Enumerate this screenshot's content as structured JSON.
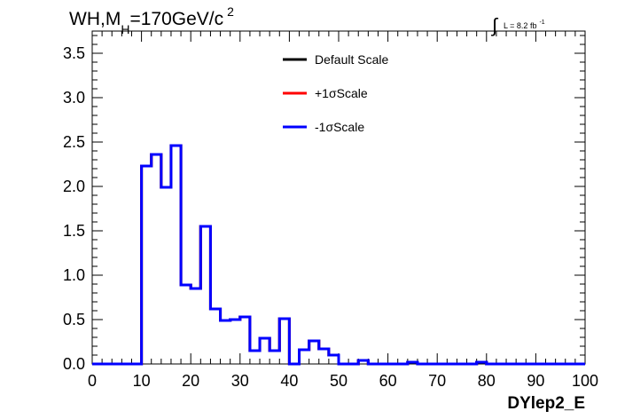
{
  "chart_data": {
    "type": "step",
    "title": {
      "main": "WH,M",
      "sub": "H",
      "rest": "=170GeV/c",
      "sup": "2"
    },
    "lumi": {
      "integral": "∫",
      "text": "L = 8.2 fb",
      "sup": "-1"
    },
    "xlabel": "DYlep2_E",
    "ylabel": "",
    "xlim": [
      0,
      100
    ],
    "ylim": [
      0,
      3.75
    ],
    "xticks": [
      "0",
      "10",
      "20",
      "30",
      "40",
      "50",
      "60",
      "70",
      "80",
      "90",
      "100"
    ],
    "yticks": [
      "0.0",
      "0.5",
      "1.0",
      "1.5",
      "2.0",
      "2.5",
      "3.0",
      "3.5"
    ],
    "bin_edges": [
      0,
      2,
      4,
      6,
      8,
      10,
      12,
      14,
      16,
      18,
      20,
      22,
      24,
      26,
      28,
      30,
      32,
      34,
      36,
      38,
      40,
      42,
      44,
      46,
      48,
      50,
      52,
      54,
      56,
      58,
      60,
      62,
      64,
      66,
      68,
      70,
      72,
      74,
      76,
      78,
      80,
      82,
      84,
      86,
      88,
      90,
      92,
      94,
      96,
      98,
      100
    ],
    "series": [
      {
        "name": "Default Scale",
        "color": "#000000",
        "values": [
          0,
          0,
          0,
          0,
          0,
          2.23,
          2.36,
          1.99,
          2.46,
          0.89,
          0.85,
          1.55,
          0.62,
          0.49,
          0.5,
          0.53,
          0.15,
          0.29,
          0.15,
          0.51,
          0.0,
          0.16,
          0.26,
          0.17,
          0.1,
          0.0,
          0.0,
          0.04,
          0.0,
          0.0,
          0.0,
          0.0,
          0.02,
          0.0,
          0.0,
          0.0,
          0.0,
          0.0,
          0.0,
          0.02,
          0.0,
          0.0,
          0.0,
          0.0,
          0.0,
          0.0,
          0.0,
          0.0,
          0.0,
          0.0
        ]
      },
      {
        "name": "+1σScale",
        "color": "#ff0000",
        "values": [
          0,
          0,
          0,
          0,
          0,
          2.23,
          2.36,
          1.99,
          2.46,
          0.89,
          0.85,
          1.55,
          0.62,
          0.49,
          0.5,
          0.53,
          0.15,
          0.29,
          0.15,
          0.51,
          0.0,
          0.16,
          0.26,
          0.17,
          0.1,
          0.0,
          0.0,
          0.04,
          0.0,
          0.0,
          0.0,
          0.0,
          0.02,
          0.0,
          0.0,
          0.0,
          0.0,
          0.0,
          0.0,
          0.02,
          0.0,
          0.0,
          0.0,
          0.0,
          0.0,
          0.0,
          0.0,
          0.0,
          0.0,
          0.0
        ]
      },
      {
        "name": "-1σScale",
        "color": "#0000ff",
        "values": [
          0,
          0,
          0,
          0,
          0,
          2.23,
          2.36,
          1.99,
          2.46,
          0.89,
          0.85,
          1.55,
          0.62,
          0.49,
          0.5,
          0.53,
          0.15,
          0.29,
          0.15,
          0.51,
          0.0,
          0.16,
          0.26,
          0.17,
          0.1,
          0.0,
          0.0,
          0.04,
          0.0,
          0.0,
          0.0,
          0.0,
          0.02,
          0.0,
          0.0,
          0.0,
          0.0,
          0.0,
          0.0,
          0.02,
          0.0,
          0.0,
          0.0,
          0.0,
          0.0,
          0.0,
          0.0,
          0.0,
          0.0,
          0.0
        ]
      }
    ],
    "legend_position": "top-center",
    "grid": false
  }
}
